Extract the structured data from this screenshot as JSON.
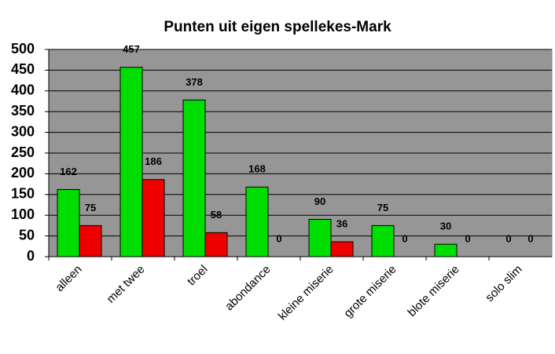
{
  "chart_data": {
    "type": "bar",
    "title": "Punten uit eigen spellekes-Mark",
    "categories": [
      "alleen",
      "met twee",
      "troel",
      "abondance",
      "kleine miserie",
      "grote miserie",
      "blote miserie",
      "solo slim"
    ],
    "series": [
      {
        "color": "#00dd00",
        "values": [
          162,
          457,
          378,
          168,
          90,
          75,
          30,
          0
        ]
      },
      {
        "color": "#ee0000",
        "values": [
          75,
          186,
          58,
          0,
          36,
          0,
          0,
          0
        ]
      }
    ],
    "ylim": [
      0,
      500
    ],
    "yticks": [
      0,
      50,
      100,
      150,
      200,
      250,
      300,
      350,
      400,
      450,
      500
    ],
    "grid": true,
    "plot_background": "#969696"
  }
}
